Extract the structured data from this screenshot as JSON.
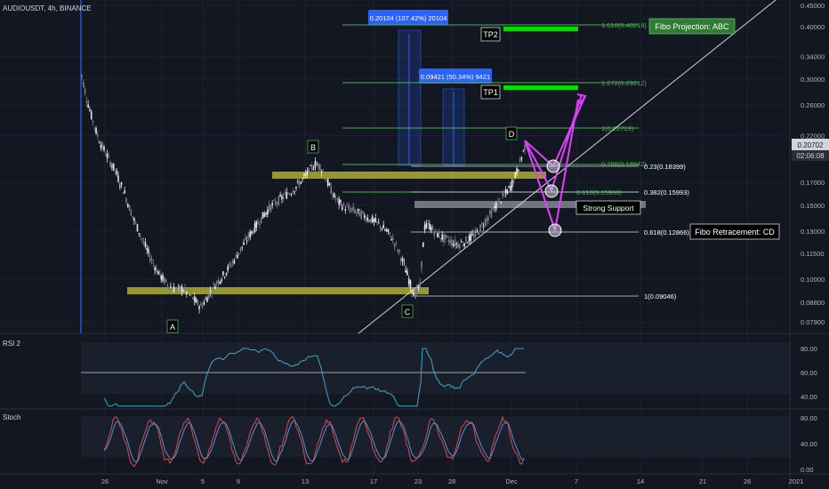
{
  "header": {
    "symbol_line": "AUDIOUSDT, 4h, BINANCE"
  },
  "chart_data": [
    {
      "type": "candlestick",
      "title": "AUDIOUSDT, 4h, BINANCE",
      "ylim": [
        0.075,
        0.45
      ],
      "y_scale": "log",
      "y_ticks": [
        "0.45000",
        "0.40000",
        "0.34000",
        "0.30000",
        "0.26000",
        "0.22000",
        "0.20702",
        "0.17000",
        "0.15000",
        "0.13000",
        "0.11500",
        "0.10000",
        "0.08800",
        "0.07900"
      ],
      "x_ticks": [
        "26",
        "Nov",
        "5",
        "9",
        "13",
        "17",
        "23",
        "28",
        "Dec",
        "7",
        "14",
        "21",
        "26",
        "2021"
      ],
      "price_label": "0.20702",
      "countdown_label": "02:06:08",
      "close_series": [
        0.305,
        0.27,
        0.245,
        0.225,
        0.21,
        0.2,
        0.19,
        0.182,
        0.17,
        0.16,
        0.148,
        0.138,
        0.13,
        0.122,
        0.115,
        0.109,
        0.104,
        0.1,
        0.097,
        0.095,
        0.094,
        0.095,
        0.093,
        0.091,
        0.088,
        0.086,
        0.089,
        0.093,
        0.097,
        0.1,
        0.103,
        0.107,
        0.111,
        0.116,
        0.121,
        0.126,
        0.131,
        0.136,
        0.141,
        0.146,
        0.15,
        0.153,
        0.156,
        0.159,
        0.162,
        0.166,
        0.171,
        0.176,
        0.182,
        0.188,
        0.186,
        0.176,
        0.166,
        0.157,
        0.152,
        0.149,
        0.147,
        0.146,
        0.144,
        0.142,
        0.14,
        0.138,
        0.136,
        0.133,
        0.13,
        0.126,
        0.12,
        0.113,
        0.105,
        0.097,
        0.092,
        0.096,
        0.133,
        0.134,
        0.13,
        0.127,
        0.125,
        0.124,
        0.122,
        0.121,
        0.122,
        0.124,
        0.126,
        0.129,
        0.134,
        0.139,
        0.144,
        0.15,
        0.155,
        0.16,
        0.166,
        0.176,
        0.19,
        0.207
      ],
      "annotations": {
        "points": [
          "A",
          "B",
          "C",
          "D"
        ],
        "tp_labels": [
          "TP1",
          "TP2"
        ],
        "measures": [
          "0.09421 (50.34%) 9421",
          "0.20104 (107.42%) 20104"
        ],
        "fib_projection_label": "Fibo Projection: ABC",
        "fib_projection_levels": [
          "1.618(0.40219)",
          "1.272(0.29212)",
          "1(0.22719)",
          "0.786(0.18642)",
          "0.618(0.15968)"
        ],
        "fib_retrace_label": "Fibo Retracement: CD",
        "fib_retrace_levels": [
          "0.23(0.18399)",
          "0.382(0.15993)",
          "0.618(0.12866)",
          "1(0.09046)"
        ],
        "support_label": "Strong Support"
      }
    },
    {
      "type": "line",
      "title": "RSI 2",
      "ylim": [
        30,
        85
      ],
      "y_ticks": [
        "80.00",
        "60.00",
        "40.00"
      ],
      "bands": [
        70,
        30
      ]
    },
    {
      "type": "line",
      "title": "Stoch",
      "ylim": [
        0,
        85
      ],
      "y_ticks": [
        "80.00",
        "40.00",
        "0.00"
      ],
      "series": [
        {
          "color": "#d84a4a"
        },
        {
          "color": "#5a8fd8"
        }
      ]
    }
  ],
  "colors": {
    "bg": "#131722",
    "grid": "#1f2433",
    "text": "#b2b5be",
    "up": "#ffffff",
    "down": "#787b86",
    "fib_green": "#4caf50",
    "tp_green": "#00e000",
    "magenta": "#e040fb",
    "olive": "#b8b830",
    "measure_blue": "#2962ff"
  }
}
